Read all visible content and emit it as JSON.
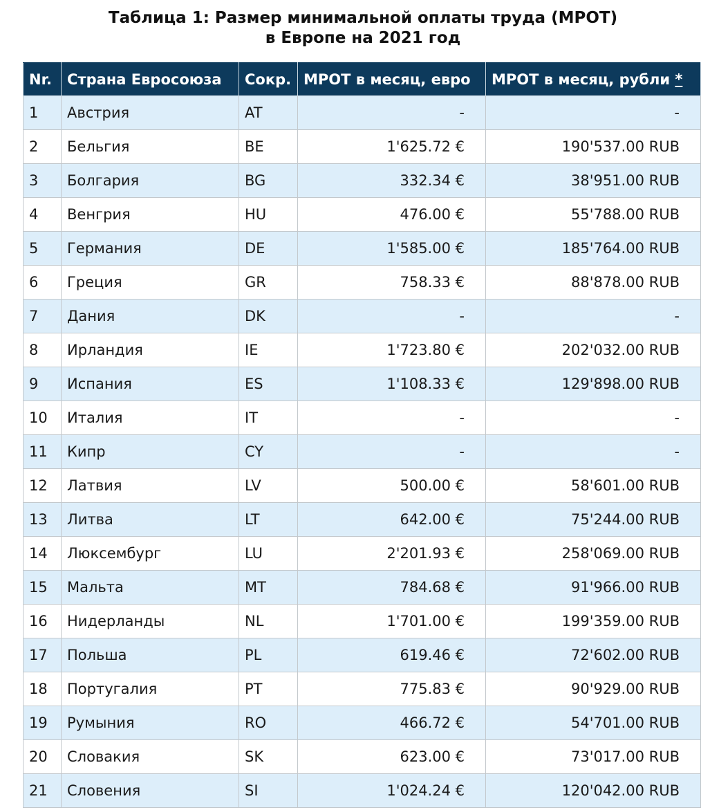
{
  "caption": {
    "line1": "Таблица 1: Размер минимальной оплаты труда (МРОТ)",
    "line2": "в Европе на 2021 год"
  },
  "table": {
    "headers": {
      "nr": "Nr.",
      "country": "Страна Евросоюза",
      "abbr": "Сокр.",
      "eur": "МРОТ в месяц, евро",
      "rub": "МРОТ в месяц, рубли",
      "rub_note": "*"
    },
    "rows": [
      {
        "nr": "1",
        "country": "Австрия",
        "abbr": "AT",
        "eur": "-",
        "rub": "-"
      },
      {
        "nr": "2",
        "country": "Бельгия",
        "abbr": "BE",
        "eur": "1'625.72 €",
        "rub": "190'537.00 RUB"
      },
      {
        "nr": "3",
        "country": "Болгария",
        "abbr": "BG",
        "eur": "332.34 €",
        "rub": "38'951.00 RUB"
      },
      {
        "nr": "4",
        "country": "Венгрия",
        "abbr": "HU",
        "eur": "476.00 €",
        "rub": "55'788.00 RUB"
      },
      {
        "nr": "5",
        "country": "Германия",
        "abbr": "DE",
        "eur": "1'585.00 €",
        "rub": "185'764.00 RUB"
      },
      {
        "nr": "6",
        "country": "Греция",
        "abbr": "GR",
        "eur": "758.33 €",
        "rub": "88'878.00 RUB"
      },
      {
        "nr": "7",
        "country": "Дания",
        "abbr": "DK",
        "eur": "-",
        "rub": "-"
      },
      {
        "nr": "8",
        "country": "Ирландия",
        "abbr": "IE",
        "eur": "1'723.80 €",
        "rub": "202'032.00 RUB"
      },
      {
        "nr": "9",
        "country": "Испания",
        "abbr": "ES",
        "eur": "1'108.33 €",
        "rub": "129'898.00 RUB"
      },
      {
        "nr": "10",
        "country": "Италия",
        "abbr": "IT",
        "eur": "-",
        "rub": "-"
      },
      {
        "nr": "11",
        "country": "Кипр",
        "abbr": "CY",
        "eur": "-",
        "rub": "-"
      },
      {
        "nr": "12",
        "country": "Латвия",
        "abbr": "LV",
        "eur": "500.00 €",
        "rub": "58'601.00 RUB"
      },
      {
        "nr": "13",
        "country": "Литва",
        "abbr": "LT",
        "eur": "642.00 €",
        "rub": "75'244.00 RUB"
      },
      {
        "nr": "14",
        "country": "Люксембург",
        "abbr": "LU",
        "eur": "2'201.93 €",
        "rub": "258'069.00 RUB"
      },
      {
        "nr": "15",
        "country": "Мальта",
        "abbr": "MT",
        "eur": "784.68 €",
        "rub": "91'966.00 RUB"
      },
      {
        "nr": "16",
        "country": "Нидерланды",
        "abbr": "NL",
        "eur": "1'701.00 €",
        "rub": "199'359.00 RUB"
      },
      {
        "nr": "17",
        "country": "Польша",
        "abbr": "PL",
        "eur": "619.46 €",
        "rub": "72'602.00 RUB"
      },
      {
        "nr": "18",
        "country": "Португалия",
        "abbr": "PT",
        "eur": "775.83 €",
        "rub": "90'929.00 RUB"
      },
      {
        "nr": "19",
        "country": "Румыния",
        "abbr": "RO",
        "eur": "466.72 €",
        "rub": "54'701.00 RUB"
      },
      {
        "nr": "20",
        "country": "Словакия",
        "abbr": "SK",
        "eur": "623.00 €",
        "rub": "73'017.00 RUB"
      },
      {
        "nr": "21",
        "country": "Словения",
        "abbr": "SI",
        "eur": "1'024.24 €",
        "rub": "120'042.00 RUB"
      }
    ]
  },
  "colors": {
    "header_bg": "#0d3a5c",
    "row_stripe": "#ddeefa",
    "row_plain": "#ffffff"
  }
}
